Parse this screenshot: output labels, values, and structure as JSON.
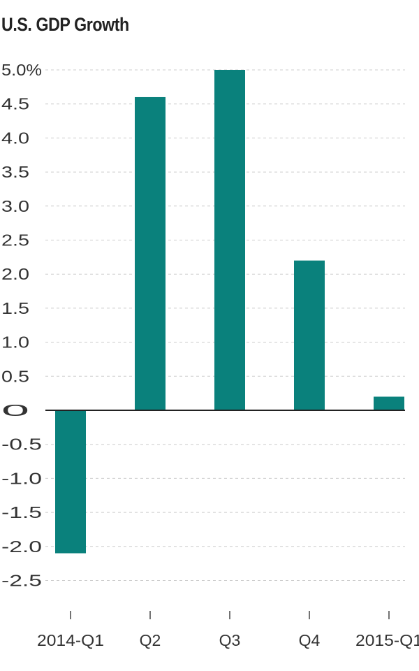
{
  "chart_data": {
    "type": "bar",
    "title": "U.S. GDP Growth",
    "categories": [
      "2014-Q1",
      "Q2",
      "Q3",
      "Q4",
      "2015-Q1"
    ],
    "values": [
      -2.1,
      4.6,
      5.0,
      2.2,
      0.2
    ],
    "xlabel": "",
    "ylabel": "",
    "ylim": [
      -2.9,
      5.0
    ],
    "yticks": [
      5.0,
      4.5,
      4.0,
      3.5,
      3.0,
      2.5,
      2.0,
      1.5,
      1.0,
      0.5,
      0,
      -0.5,
      -1.0,
      -1.5,
      -2.0,
      -2.5
    ],
    "ytick_labels": [
      "5.0%",
      "4.5",
      "4.0",
      "3.5",
      "3.0",
      "2.5",
      "2.0",
      "1.5",
      "1.0",
      "0.5",
      "0",
      "-0.5",
      "-1.0",
      "-1.5",
      "-2.0",
      "-2.5"
    ],
    "grid": true,
    "legend": "none",
    "colors": {
      "bar": "#0a817c",
      "grid": "#cccccc",
      "axis": "#222222",
      "text": "#333333"
    }
  }
}
